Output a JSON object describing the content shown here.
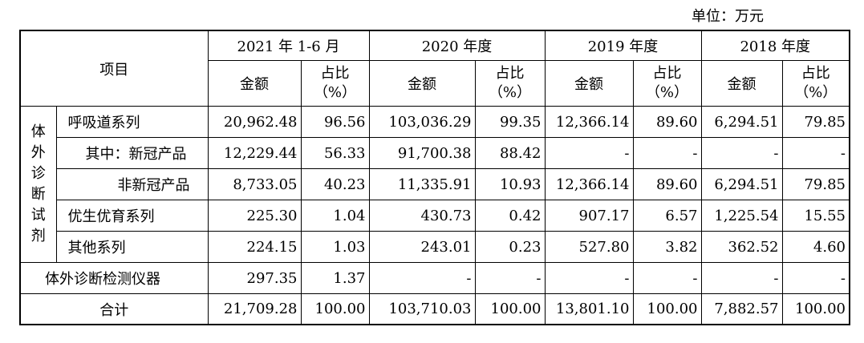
{
  "unit_label": "单位：万元",
  "header": {
    "item": "项目",
    "periods": [
      "2021 年 1-6 月",
      "2020 年度",
      "2019 年度",
      "2018 年度"
    ],
    "amount": "金额",
    "ratio_line1": "占比",
    "ratio_line2": "（%）"
  },
  "group_label_chars": [
    "体",
    "外",
    "诊",
    "断",
    "试",
    "剂"
  ],
  "rows": [
    {
      "label": "呼吸道系列",
      "values": [
        "20,962.48",
        "96.56",
        "103,036.29",
        "99.35",
        "12,366.14",
        "89.60",
        "6,294.51",
        "79.85"
      ]
    },
    {
      "label": "其中：新冠产品",
      "values": [
        "12,229.44",
        "56.33",
        "91,700.38",
        "88.42",
        "-",
        "-",
        "-",
        "-"
      ]
    },
    {
      "label": "非新冠产品",
      "values": [
        "8,733.05",
        "40.23",
        "11,335.91",
        "10.93",
        "12,366.14",
        "89.60",
        "6,294.51",
        "79.85"
      ]
    },
    {
      "label": "优生优育系列",
      "values": [
        "225.30",
        "1.04",
        "430.73",
        "0.42",
        "907.17",
        "6.57",
        "1,225.54",
        "15.55"
      ]
    },
    {
      "label": "其他系列",
      "values": [
        "224.15",
        "1.03",
        "243.01",
        "0.23",
        "527.80",
        "3.82",
        "362.52",
        "4.60"
      ]
    }
  ],
  "instrument_row": {
    "label": "体外诊断检测仪器",
    "values": [
      "297.35",
      "1.37",
      "-",
      "-",
      "-",
      "-",
      "-",
      "-"
    ]
  },
  "total_row": {
    "label": "合计",
    "values": [
      "21,709.28",
      "100.00",
      "103,710.03",
      "100.00",
      "13,801.10",
      "100.00",
      "7,882.57",
      "100.00"
    ]
  }
}
